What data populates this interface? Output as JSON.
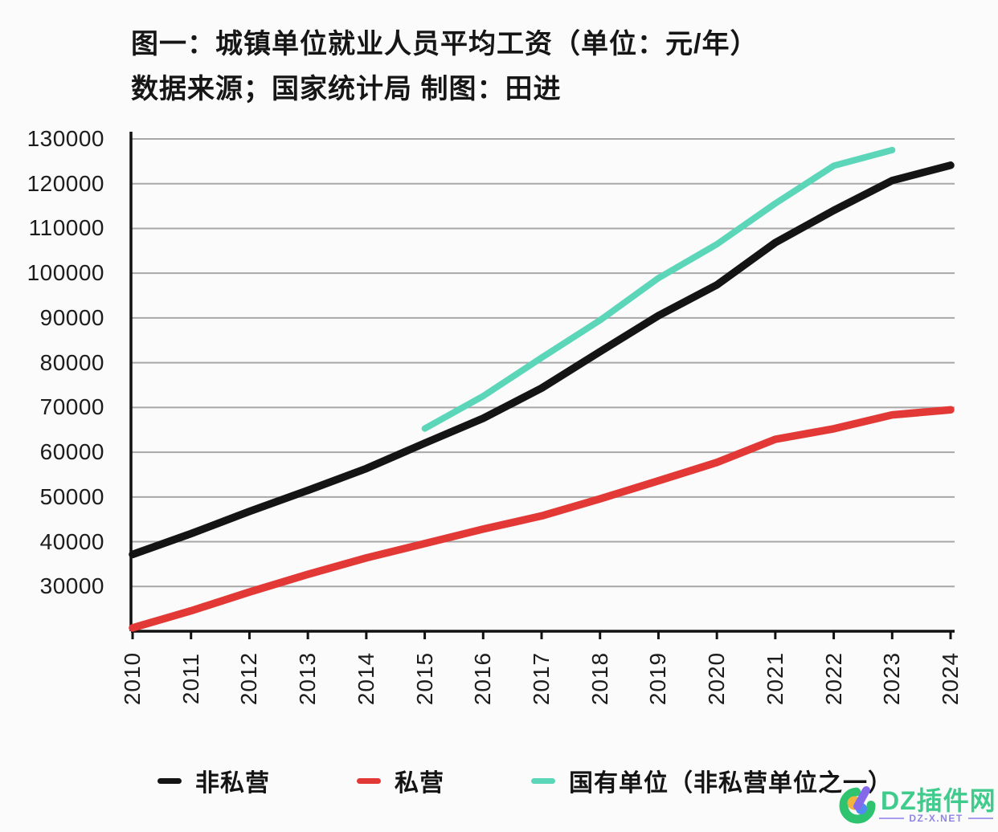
{
  "title": "图一：城镇单位就业人员平均工资（单位：元/年）",
  "subtitle": "数据来源；国家统计局 制图：田进",
  "colors": {
    "axis": "#111111",
    "grid": "#a7a7a7",
    "text": "#1c1c1c",
    "non_private_line": "#141414",
    "private_line": "#e23936",
    "state_owned_line": "#5bd6b8",
    "watermark_green": "#3ecb8c",
    "watermark_purple": "#8f84e6",
    "background": "#fcfbfb"
  },
  "chart_data": {
    "type": "line",
    "title": "图一：城镇单位就业人员平均工资（单位：元/年）",
    "xlabel": "",
    "ylabel": "",
    "x": [
      2010,
      2011,
      2012,
      2013,
      2014,
      2015,
      2016,
      2017,
      2018,
      2019,
      2020,
      2021,
      2022,
      2023,
      2024
    ],
    "series": [
      {
        "name": "非私营",
        "color": "#141414",
        "values": [
          37147,
          41799,
          46769,
          51483,
          56360,
          62029,
          67569,
          74318,
          82461,
          90501,
          97379,
          106837,
          114029,
          120698,
          124110
        ]
      },
      {
        "name": "私营",
        "color": "#e23936",
        "values": [
          20759,
          24556,
          28752,
          32706,
          36390,
          39589,
          42833,
          45761,
          49575,
          53604,
          57727,
          62884,
          65237,
          68340,
          69476
        ]
      },
      {
        "name": "国有单位（非私营单位之一）",
        "color": "#5bd6b8",
        "values": [
          null,
          null,
          null,
          null,
          null,
          65296,
          72538,
          81114,
          89474,
          98899,
          106474,
          115583,
          124000,
          127500,
          null
        ]
      }
    ],
    "ylim": [
      20000,
      130000
    ],
    "yticks": [
      30000,
      40000,
      50000,
      60000,
      70000,
      80000,
      90000,
      100000,
      110000,
      120000,
      130000
    ],
    "grid": true,
    "legend_position": "bottom"
  },
  "watermark": {
    "brand": "DZ插件网",
    "domain": "DZ-X.NET"
  }
}
